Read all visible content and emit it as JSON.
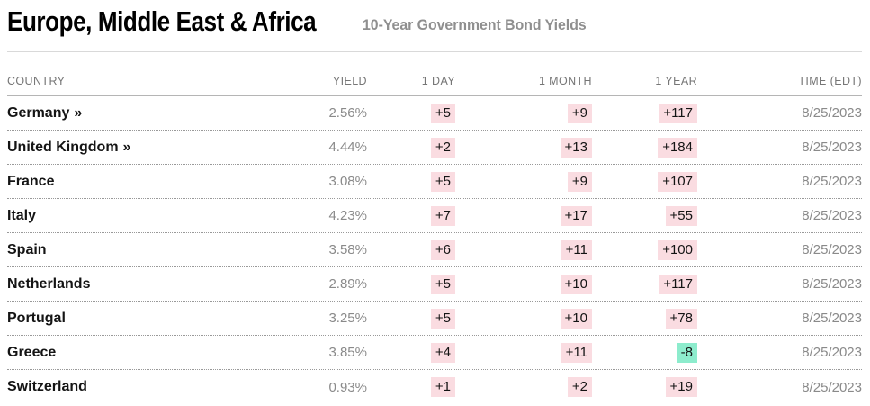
{
  "header": {
    "title": "Europe, Middle East & Africa",
    "subtitle": "10-Year Government Bond Yields"
  },
  "table": {
    "columns": [
      "COUNTRY",
      "YIELD",
      "1 DAY",
      "1 MONTH",
      "1 YEAR",
      "TIME (EDT)"
    ],
    "rows": [
      {
        "country": "Germany",
        "marker": "»",
        "yield": "2.56%",
        "day1": "+5",
        "month1": "+9",
        "year1": "+117",
        "time": "8/25/2023"
      },
      {
        "country": "United Kingdom",
        "marker": "»",
        "yield": "4.44%",
        "day1": "+2",
        "month1": "+13",
        "year1": "+184",
        "time": "8/25/2023"
      },
      {
        "country": "France",
        "marker": "",
        "yield": "3.08%",
        "day1": "+5",
        "month1": "+9",
        "year1": "+107",
        "time": "8/25/2023"
      },
      {
        "country": "Italy",
        "marker": "",
        "yield": "4.23%",
        "day1": "+7",
        "month1": "+17",
        "year1": "+55",
        "time": "8/25/2023"
      },
      {
        "country": "Spain",
        "marker": "",
        "yield": "3.58%",
        "day1": "+6",
        "month1": "+11",
        "year1": "+100",
        "time": "8/25/2023"
      },
      {
        "country": "Netherlands",
        "marker": "",
        "yield": "2.89%",
        "day1": "+5",
        "month1": "+10",
        "year1": "+117",
        "time": "8/25/2023"
      },
      {
        "country": "Portugal",
        "marker": "",
        "yield": "3.25%",
        "day1": "+5",
        "month1": "+10",
        "year1": "+78",
        "time": "8/25/2023"
      },
      {
        "country": "Greece",
        "marker": "",
        "yield": "3.85%",
        "day1": "+4",
        "month1": "+11",
        "year1": "-8",
        "time": "8/25/2023"
      },
      {
        "country": "Switzerland",
        "marker": "",
        "yield": "0.93%",
        "day1": "+1",
        "month1": "+2",
        "year1": "+19",
        "time": "8/25/2023"
      }
    ]
  },
  "colors": {
    "positive_bg": "#fadce1",
    "negative_bg": "#8deccd"
  }
}
